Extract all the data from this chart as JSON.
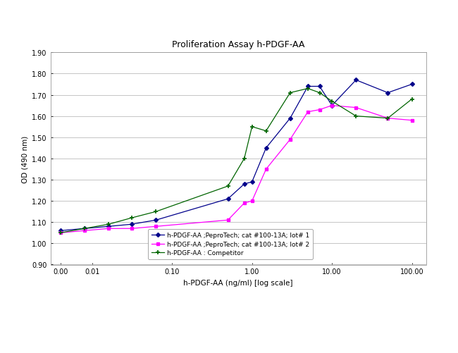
{
  "title": "Proliferation Assay h-PDGF-AA",
  "xlabel": "h-PDGF-AA (ng/ml) [log scale]",
  "ylabel": "OD (490 nm)",
  "ylim": [
    0.9,
    1.9
  ],
  "yticks": [
    0.9,
    1.0,
    1.1,
    1.2,
    1.3,
    1.4,
    1.5,
    1.6,
    1.7,
    1.8,
    1.9
  ],
  "xscale": "log",
  "xlim_left": 0.003,
  "xlim_right": 150,
  "series1_label": "h-PDGF-AA ;PeproTech; cat #100-13A; lot# 1",
  "series1_color": "#00008B",
  "series1_x": [
    0.004,
    0.008,
    0.016,
    0.031,
    0.063,
    0.5,
    0.8,
    1.0,
    1.5,
    3.0,
    5.0,
    7.0,
    10.0,
    20.0,
    50.0,
    100.0
  ],
  "series1_y": [
    1.06,
    1.07,
    1.08,
    1.09,
    1.11,
    1.21,
    1.28,
    1.29,
    1.45,
    1.59,
    1.74,
    1.74,
    1.65,
    1.77,
    1.71,
    1.75
  ],
  "series2_label": "h-PDGF-AA ;PeproTech; cat #100-13A; lot# 2",
  "series2_color": "#FF00FF",
  "series2_x": [
    0.004,
    0.008,
    0.016,
    0.031,
    0.063,
    0.5,
    0.8,
    1.0,
    1.5,
    3.0,
    5.0,
    7.0,
    10.0,
    20.0,
    50.0,
    100.0
  ],
  "series2_y": [
    1.05,
    1.06,
    1.07,
    1.07,
    1.08,
    1.11,
    1.19,
    1.2,
    1.35,
    1.49,
    1.62,
    1.63,
    1.65,
    1.64,
    1.59,
    1.58
  ],
  "series3_label": "h-PDGF-AA : Competitor",
  "series3_color": "#006400",
  "series3_x": [
    0.004,
    0.008,
    0.016,
    0.031,
    0.063,
    0.5,
    0.8,
    1.0,
    1.5,
    3.0,
    5.0,
    7.0,
    10.0,
    20.0,
    50.0,
    100.0
  ],
  "series3_y": [
    1.05,
    1.07,
    1.09,
    1.12,
    1.15,
    1.27,
    1.4,
    1.55,
    1.53,
    1.71,
    1.73,
    1.71,
    1.67,
    1.6,
    1.59,
    1.68
  ],
  "xtick_positions": [
    0.004,
    0.01,
    0.1,
    1.0,
    10.0,
    100.0
  ],
  "xtick_labels": [
    "0.00",
    "0.01",
    "0.10",
    "1.00",
    "10.00",
    "100.00"
  ],
  "figure_bg": "#ffffff",
  "plot_bg": "#ffffff",
  "grid_color": "#bbbbbb",
  "title_fontsize": 9,
  "axis_label_fontsize": 7.5,
  "tick_fontsize": 7,
  "legend_fontsize": 6.5
}
